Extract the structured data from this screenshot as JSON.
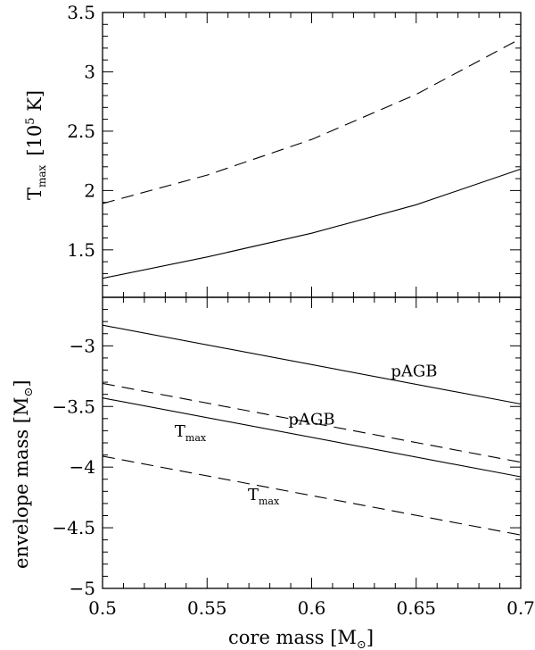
{
  "chart_data": [
    {
      "type": "line",
      "panel": "top",
      "ylabel_main": "T",
      "ylabel_sub": "max",
      "ylabel_units": "[10",
      "ylabel_exp": "5",
      "ylabel_units_end": " K]",
      "xlim": [
        0.5,
        0.7
      ],
      "ylim": [
        1.1,
        3.5
      ],
      "yticks": [
        1.5,
        2,
        2.5,
        3,
        3.5
      ],
      "ytick_labels": [
        "1.5",
        "2",
        "2.5",
        "3",
        "3.5"
      ],
      "series": [
        {
          "style": "dashed",
          "x": [
            0.5,
            0.55,
            0.6,
            0.65,
            0.7
          ],
          "y": [
            1.89,
            2.13,
            2.43,
            2.81,
            3.28
          ]
        },
        {
          "style": "solid",
          "x": [
            0.5,
            0.55,
            0.6,
            0.65,
            0.7
          ],
          "y": [
            1.26,
            1.44,
            1.64,
            1.88,
            2.18
          ]
        }
      ]
    },
    {
      "type": "line",
      "panel": "bottom",
      "ylabel": "envelope mass [M",
      "ylabel_end": "]",
      "xlabel": "core mass [M",
      "xlabel_end": "]",
      "sun_symbol": "⊙",
      "xlim": [
        0.5,
        0.7
      ],
      "ylim": [
        -5,
        -2.6
      ],
      "xticks": [
        0.5,
        0.55,
        0.6,
        0.65,
        0.7
      ],
      "xtick_labels": [
        "0.5",
        "0.55",
        "0.6",
        "0.65",
        "0.7"
      ],
      "yticks": [
        -5,
        -4.5,
        -4,
        -3.5,
        -3
      ],
      "ytick_labels": [
        "−5",
        "−4.5",
        "−4",
        "−3.5",
        "−3"
      ],
      "series": [
        {
          "style": "solid",
          "label": "pAGB",
          "x": [
            0.5,
            0.7
          ],
          "y": [
            -2.83,
            -3.48
          ]
        },
        {
          "style": "dashed",
          "label": "pAGB",
          "x": [
            0.5,
            0.7
          ],
          "y": [
            -3.31,
            -3.96
          ]
        },
        {
          "style": "solid",
          "label": "T",
          "label_sub": "max",
          "x": [
            0.5,
            0.7
          ],
          "y": [
            -3.43,
            -4.08
          ]
        },
        {
          "style": "dashed",
          "label": "T",
          "label_sub": "max",
          "x": [
            0.5,
            0.7
          ],
          "y": [
            -3.91,
            -4.56
          ]
        }
      ],
      "annotations": [
        {
          "text": "pAGB",
          "x": 0.649,
          "y": -3.25
        },
        {
          "text": "pAGB",
          "x": 0.6,
          "y": -3.65
        },
        {
          "text": "T",
          "sub": "max",
          "x": 0.542,
          "y": -3.75
        },
        {
          "text": "T",
          "sub": "max",
          "x": 0.577,
          "y": -4.27
        }
      ]
    }
  ]
}
